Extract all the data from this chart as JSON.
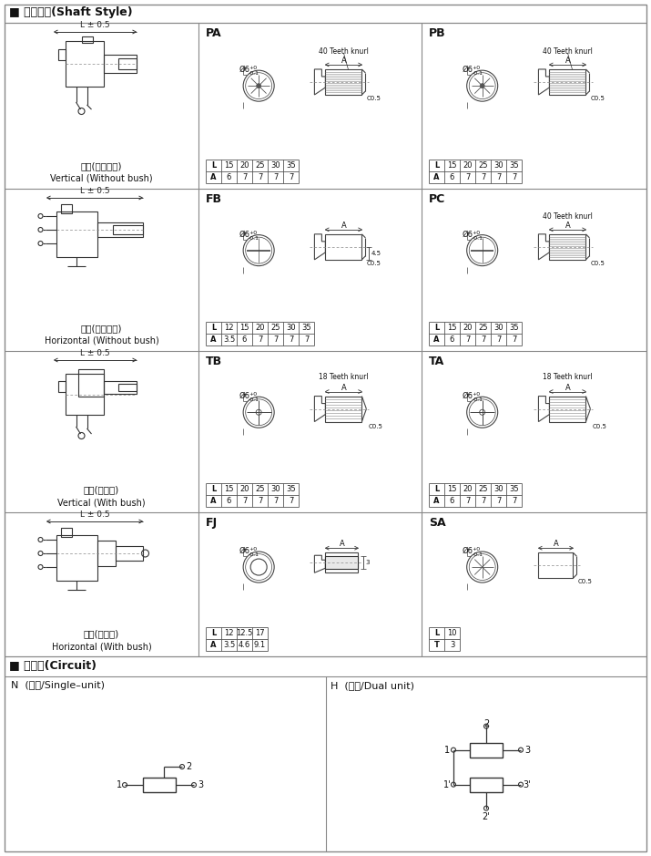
{
  "title_shaft": "■ 轴的类型(Shaft Style)",
  "title_circuit": "■ 电路图(Circuit)",
  "bg_color": "#ffffff",
  "shaft_styles": [
    {
      "label_zh": "立式(不带轴套)",
      "label_en": "Vertical (Without bush)"
    },
    {
      "label_zh": "卧式(不带轴套)",
      "label_en": "Horizontal (Without bush)"
    },
    {
      "label_zh": "立式(带轴套)",
      "label_en": "Vertical (With bush)"
    },
    {
      "label_zh": "卧式(带轴套)",
      "label_en": "Horizontal (With bush)"
    }
  ],
  "shaft_types": [
    {
      "code": "PA",
      "teeth": "40 Teeth knurl",
      "col": 0,
      "row": 0,
      "table_rows": [
        [
          "L",
          "15",
          "20",
          "25",
          "30",
          "35"
        ],
        [
          "A",
          "6",
          "7",
          "7",
          "7",
          "7"
        ]
      ]
    },
    {
      "code": "PB",
      "teeth": "40 Teeth knurl",
      "col": 1,
      "row": 0,
      "table_rows": [
        [
          "L",
          "15",
          "20",
          "25",
          "30",
          "35"
        ],
        [
          "A",
          "6",
          "7",
          "7",
          "7",
          "7"
        ]
      ]
    },
    {
      "code": "FB",
      "teeth": "",
      "col": 0,
      "row": 1,
      "table_rows": [
        [
          "L",
          "12",
          "15",
          "20",
          "25",
          "30",
          "35"
        ],
        [
          "A",
          "3.5",
          "6",
          "7",
          "7",
          "7",
          "7"
        ]
      ]
    },
    {
      "code": "PC",
      "teeth": "40 Teeth knurl",
      "col": 1,
      "row": 1,
      "table_rows": [
        [
          "L",
          "15",
          "20",
          "25",
          "30",
          "35"
        ],
        [
          "A",
          "6",
          "7",
          "7",
          "7",
          "7"
        ]
      ]
    },
    {
      "code": "TB",
      "teeth": "18 Teeth knurl",
      "col": 0,
      "row": 2,
      "table_rows": [
        [
          "L",
          "15",
          "20",
          "25",
          "30",
          "35"
        ],
        [
          "A",
          "6",
          "7",
          "7",
          "7",
          "7"
        ]
      ]
    },
    {
      "code": "TA",
      "teeth": "18 Teeth knurl",
      "col": 1,
      "row": 2,
      "table_rows": [
        [
          "L",
          "15",
          "20",
          "25",
          "30",
          "35"
        ],
        [
          "A",
          "6",
          "7",
          "7",
          "7",
          "7"
        ]
      ]
    },
    {
      "code": "FJ",
      "teeth": "",
      "col": 0,
      "row": 3,
      "table_rows": [
        [
          "L",
          "12",
          "12.5",
          "17"
        ],
        [
          "A",
          "3.5",
          "4.6",
          "9.1"
        ]
      ]
    },
    {
      "code": "SA",
      "teeth": "",
      "col": 1,
      "row": 3,
      "table_rows": [
        [
          "L",
          "10"
        ],
        [
          "T",
          "3"
        ]
      ]
    }
  ],
  "circuit_N_label": "N  (单联/Single–unit)",
  "circuit_H_label": "H  (双联/Dual unit)"
}
